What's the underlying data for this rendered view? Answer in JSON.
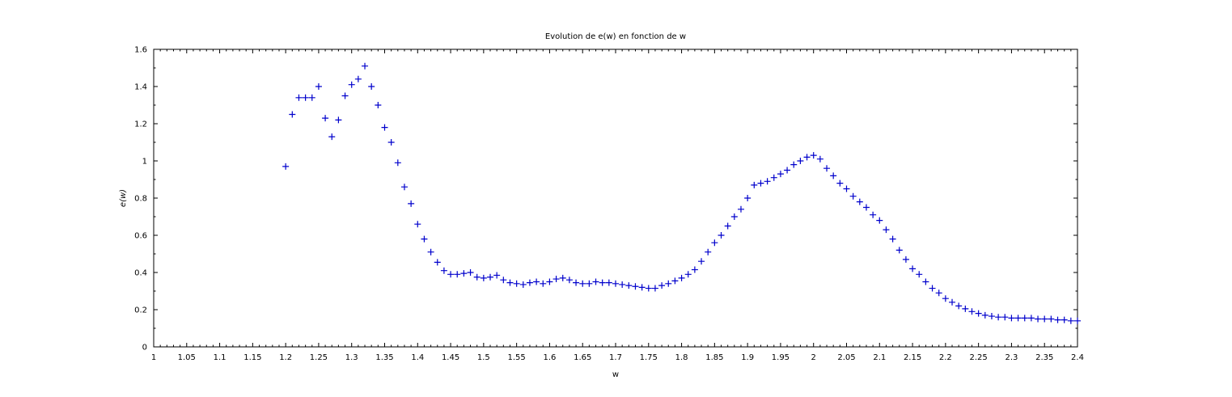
{
  "chart_data": {
    "type": "scatter",
    "title": "Evolution de e(w) en fonction de w",
    "xlabel": "w",
    "ylabel": "e(w)",
    "xlim": [
      1,
      2.4
    ],
    "ylim": [
      0,
      1.6
    ],
    "x_ticks": [
      "1",
      "1.05",
      "1.1",
      "1.15",
      "1.2",
      "1.25",
      "1.3",
      "1.35",
      "1.4",
      "1.45",
      "1.5",
      "1.55",
      "1.6",
      "1.65",
      "1.7",
      "1.75",
      "1.8",
      "1.85",
      "1.9",
      "1.95",
      "2",
      "2.05",
      "2.1",
      "2.15",
      "2.2",
      "2.25",
      "2.3",
      "2.35",
      "2.4"
    ],
    "y_ticks": [
      "0",
      "0.2",
      "0.4",
      "0.6",
      "0.8",
      "1",
      "1.2",
      "1.4",
      "1.6"
    ],
    "marker": "+",
    "marker_color": "#0000cc",
    "grid": false,
    "legend": false,
    "series": [
      {
        "x": [
          1.2,
          1.21,
          1.22,
          1.23,
          1.24,
          1.25,
          1.26,
          1.27,
          1.28,
          1.29,
          1.3,
          1.31,
          1.32,
          1.33,
          1.34,
          1.35,
          1.36,
          1.37,
          1.38,
          1.39,
          1.4,
          1.41,
          1.42,
          1.43,
          1.44,
          1.45,
          1.46,
          1.47,
          1.48,
          1.49,
          1.5,
          1.51,
          1.52,
          1.53,
          1.54,
          1.55,
          1.56,
          1.57,
          1.58,
          1.59,
          1.6,
          1.61,
          1.62,
          1.63,
          1.64,
          1.65,
          1.66,
          1.67,
          1.68,
          1.69,
          1.7,
          1.71,
          1.72,
          1.73,
          1.74,
          1.75,
          1.76,
          1.77,
          1.78,
          1.79,
          1.8,
          1.81,
          1.82,
          1.83,
          1.84,
          1.85,
          1.86,
          1.87,
          1.88,
          1.89,
          1.9,
          1.91,
          1.92,
          1.93,
          1.94,
          1.95,
          1.96,
          1.97,
          1.98,
          1.99,
          2.0,
          2.01,
          2.02,
          2.03,
          2.04,
          2.05,
          2.06,
          2.07,
          2.08,
          2.09,
          2.1,
          2.11,
          2.12,
          2.13,
          2.14,
          2.15,
          2.16,
          2.17,
          2.18,
          2.19,
          2.2,
          2.21,
          2.22,
          2.23,
          2.24,
          2.25,
          2.26,
          2.27,
          2.28,
          2.29,
          2.3,
          2.31,
          2.32,
          2.33,
          2.34,
          2.35,
          2.36,
          2.37,
          2.38,
          2.39,
          2.4
        ],
        "y": [
          0.97,
          1.25,
          1.34,
          1.34,
          1.34,
          1.4,
          1.23,
          1.13,
          1.22,
          1.35,
          1.41,
          1.44,
          1.51,
          1.4,
          1.3,
          1.18,
          1.1,
          0.99,
          0.86,
          0.77,
          0.66,
          0.58,
          0.51,
          0.455,
          0.41,
          0.39,
          0.39,
          0.395,
          0.4,
          0.375,
          0.37,
          0.375,
          0.385,
          0.36,
          0.345,
          0.34,
          0.335,
          0.345,
          0.35,
          0.34,
          0.35,
          0.365,
          0.37,
          0.36,
          0.345,
          0.34,
          0.34,
          0.35,
          0.345,
          0.345,
          0.34,
          0.335,
          0.33,
          0.325,
          0.32,
          0.315,
          0.315,
          0.33,
          0.34,
          0.355,
          0.37,
          0.39,
          0.415,
          0.46,
          0.51,
          0.56,
          0.6,
          0.65,
          0.7,
          0.74,
          0.8,
          0.87,
          0.88,
          0.89,
          0.91,
          0.93,
          0.95,
          0.98,
          1.0,
          1.02,
          1.03,
          1.01,
          0.96,
          0.92,
          0.88,
          0.85,
          0.81,
          0.78,
          0.75,
          0.71,
          0.68,
          0.63,
          0.58,
          0.52,
          0.47,
          0.42,
          0.39,
          0.35,
          0.315,
          0.29,
          0.26,
          0.24,
          0.22,
          0.205,
          0.19,
          0.18,
          0.17,
          0.165,
          0.16,
          0.16,
          0.155,
          0.155,
          0.155,
          0.155,
          0.15,
          0.15,
          0.15,
          0.145,
          0.145,
          0.14,
          0.14
        ]
      }
    ]
  }
}
